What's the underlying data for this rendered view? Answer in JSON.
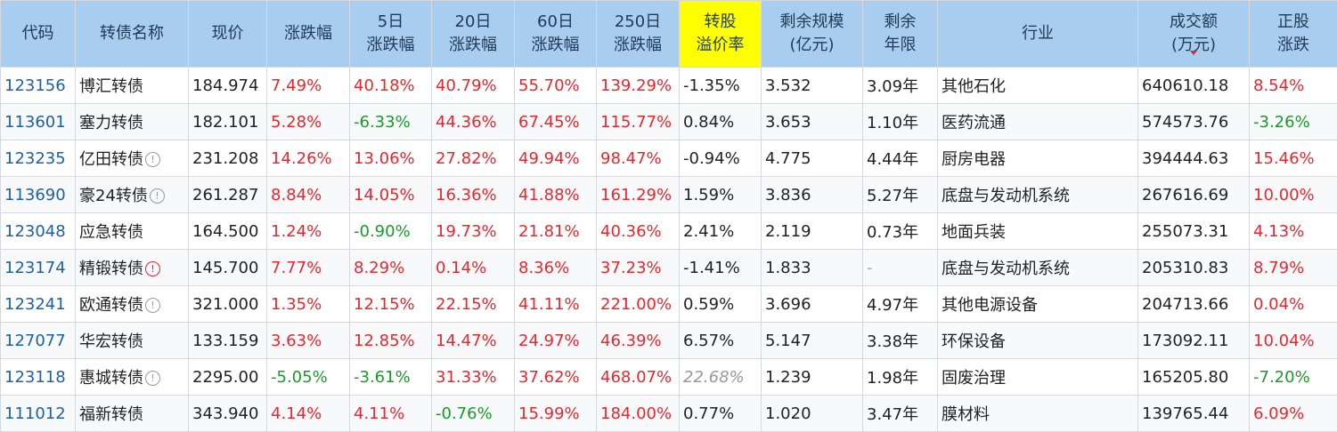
{
  "headers": [
    [
      "代码"
    ],
    [
      "转债名称"
    ],
    [
      "现价"
    ],
    [
      "涨跌幅"
    ],
    [
      "5日",
      "涨跌幅"
    ],
    [
      "20日",
      "涨跌幅"
    ],
    [
      "60日",
      "涨跌幅"
    ],
    [
      "250日",
      "涨跌幅"
    ],
    [
      "转股",
      "溢价率"
    ],
    [
      "剩余规模",
      "(亿元)"
    ],
    [
      "剩余",
      "年限"
    ],
    [
      "行业"
    ],
    [
      "成交额",
      "(万元)"
    ],
    [
      "正股",
      "涨跌"
    ]
  ],
  "colors": {
    "header_bg": "#a9cdee",
    "highlight": "#ffff00",
    "up": "#e8262d",
    "down": "#1a9a2a",
    "code": "#1f5fa3"
  },
  "rows": [
    {
      "code": "123156",
      "name": "博汇转债",
      "icon": "",
      "price": "184.974",
      "chg": "7.49%",
      "d5": "40.18%",
      "d20": "40.79%",
      "d60": "55.70%",
      "d250": "139.29%",
      "premium": "-1.35%",
      "scale": "3.532",
      "years": "3.09年",
      "industry": "其他石化",
      "volume": "640610.18",
      "stock": "8.54%"
    },
    {
      "code": "113601",
      "name": "塞力转债",
      "icon": "",
      "price": "182.101",
      "chg": "5.28%",
      "d5": "-6.33%",
      "d20": "44.36%",
      "d60": "67.45%",
      "d250": "115.77%",
      "premium": "0.84%",
      "scale": "3.653",
      "years": "1.10年",
      "industry": "医药流通",
      "volume": "574573.76",
      "stock": "-3.26%"
    },
    {
      "code": "123235",
      "name": "亿田转债",
      "icon": "info",
      "price": "231.208",
      "chg": "14.26%",
      "d5": "13.06%",
      "d20": "27.82%",
      "d60": "49.94%",
      "d250": "98.47%",
      "premium": "-0.94%",
      "scale": "4.775",
      "years": "4.44年",
      "industry": "厨房电器",
      "volume": "394444.63",
      "stock": "15.46%"
    },
    {
      "code": "113690",
      "name": "豪24转债",
      "icon": "info",
      "price": "261.287",
      "chg": "8.84%",
      "d5": "14.05%",
      "d20": "16.36%",
      "d60": "41.88%",
      "d250": "161.29%",
      "premium": "1.59%",
      "scale": "3.836",
      "years": "5.27年",
      "industry": "底盘与发动机系统",
      "volume": "267616.69",
      "stock": "10.00%"
    },
    {
      "code": "123048",
      "name": "应急转债",
      "icon": "",
      "price": "164.500",
      "chg": "1.24%",
      "d5": "-0.90%",
      "d20": "19.73%",
      "d60": "21.81%",
      "d250": "40.36%",
      "premium": "2.41%",
      "scale": "2.119",
      "years": "0.73年",
      "industry": "地面兵装",
      "volume": "255073.31",
      "stock": "4.13%"
    },
    {
      "code": "123174",
      "name": "精锻转债",
      "icon": "warn",
      "price": "145.700",
      "chg": "7.77%",
      "d5": "8.29%",
      "d20": "0.14%",
      "d60": "8.36%",
      "d250": "37.23%",
      "premium": "-1.41%",
      "scale": "1.833",
      "years": "-",
      "industry": "底盘与发动机系统",
      "volume": "205310.83",
      "stock": "8.79%"
    },
    {
      "code": "123241",
      "name": "欧通转债",
      "icon": "info",
      "price": "321.000",
      "chg": "1.35%",
      "d5": "12.15%",
      "d20": "22.15%",
      "d60": "41.11%",
      "d250": "221.00%",
      "premium": "0.59%",
      "scale": "3.696",
      "years": "4.97年",
      "industry": "其他电源设备",
      "volume": "204713.66",
      "stock": "0.04%"
    },
    {
      "code": "127077",
      "name": "华宏转债",
      "icon": "",
      "price": "133.159",
      "chg": "3.63%",
      "d5": "12.85%",
      "d20": "14.47%",
      "d60": "24.97%",
      "d250": "46.39%",
      "premium": "6.57%",
      "scale": "5.147",
      "years": "3.38年",
      "industry": "环保设备",
      "volume": "173092.11",
      "stock": "10.04%"
    },
    {
      "code": "123118",
      "name": "惠城转债",
      "icon": "info",
      "price": "2295.00",
      "chg": "-5.05%",
      "d5": "-3.61%",
      "d20": "31.33%",
      "d60": "37.62%",
      "d250": "468.07%",
      "premium": "22.68%",
      "premium_muted": true,
      "scale": "1.239",
      "years": "1.98年",
      "industry": "固废治理",
      "volume": "165205.80",
      "stock": "-7.20%"
    },
    {
      "code": "111012",
      "name": "福新转债",
      "icon": "",
      "price": "343.940",
      "chg": "4.14%",
      "d5": "4.11%",
      "d20": "-0.76%",
      "d60": "15.99%",
      "d250": "184.00%",
      "premium": "0.77%",
      "scale": "1.020",
      "years": "3.47年",
      "industry": "膜材料",
      "volume": "139765.44",
      "stock": "6.09%"
    }
  ]
}
